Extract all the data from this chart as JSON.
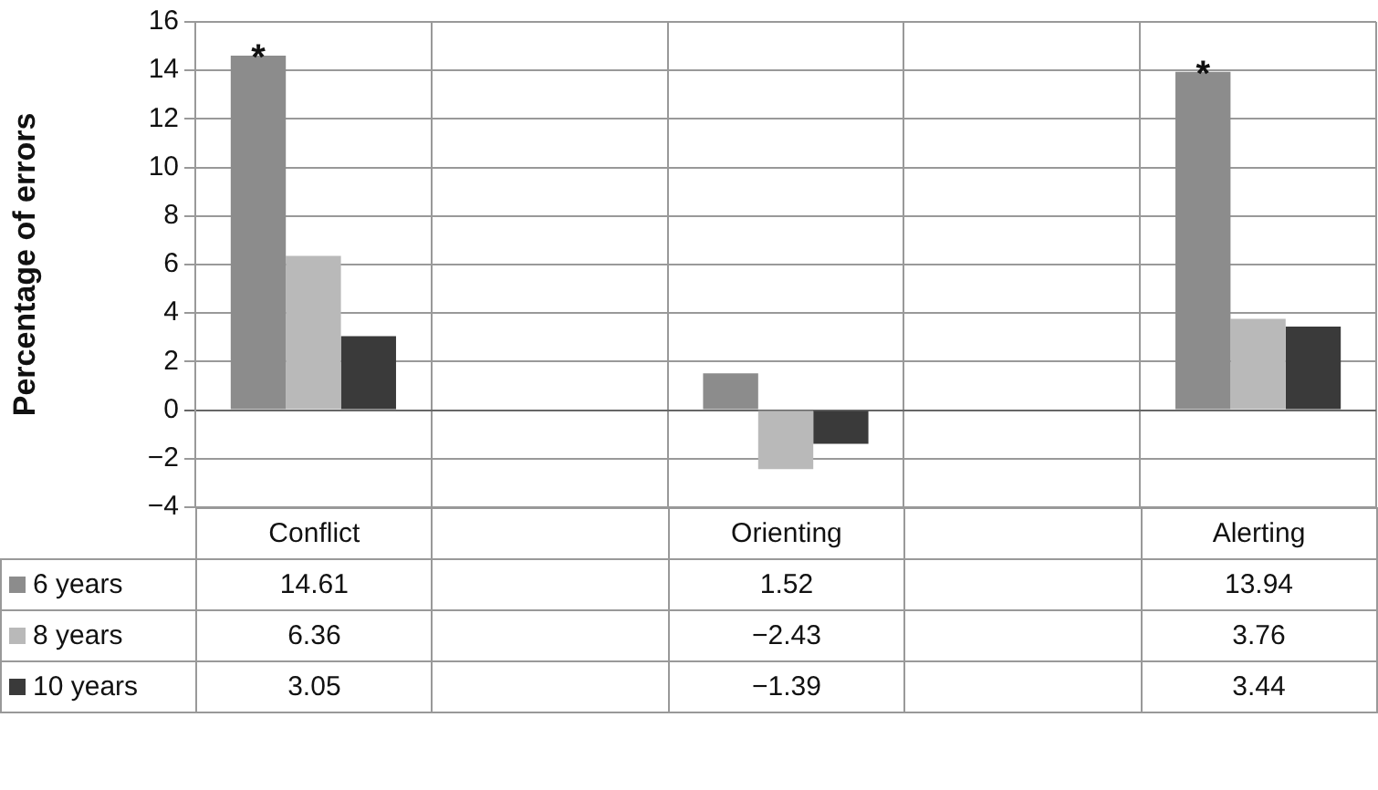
{
  "chart_data": {
    "type": "bar",
    "ylabel": "Percentage of errors",
    "categories": [
      "Conflict",
      null,
      "Orienting",
      null,
      "Alerting"
    ],
    "series": [
      {
        "name": "6 years",
        "color": "#8c8c8c",
        "values": [
          14.61,
          null,
          1.52,
          null,
          13.94
        ],
        "value_labels": [
          "14.61",
          null,
          "1.52",
          null,
          "13.94"
        ]
      },
      {
        "name": "8 years",
        "color": "#b9b9b9",
        "values": [
          6.36,
          null,
          -2.43,
          null,
          3.76
        ],
        "value_labels": [
          "6.36",
          null,
          "−2.43",
          null,
          "3.76"
        ]
      },
      {
        "name": "10 years",
        "color": "#3a3a3a",
        "values": [
          3.05,
          null,
          -1.39,
          null,
          3.44
        ],
        "value_labels": [
          "3.05",
          null,
          "−1.39",
          null,
          "3.44"
        ]
      }
    ],
    "ylim": [
      -4,
      16
    ],
    "yticks": [
      {
        "value": -4,
        "label": "−4"
      },
      {
        "value": -2,
        "label": "−2"
      },
      0,
      2,
      4,
      6,
      8,
      10,
      12,
      14,
      16
    ],
    "grid": true,
    "legend": "bottom",
    "annotations": [
      "*",
      "*"
    ]
  }
}
